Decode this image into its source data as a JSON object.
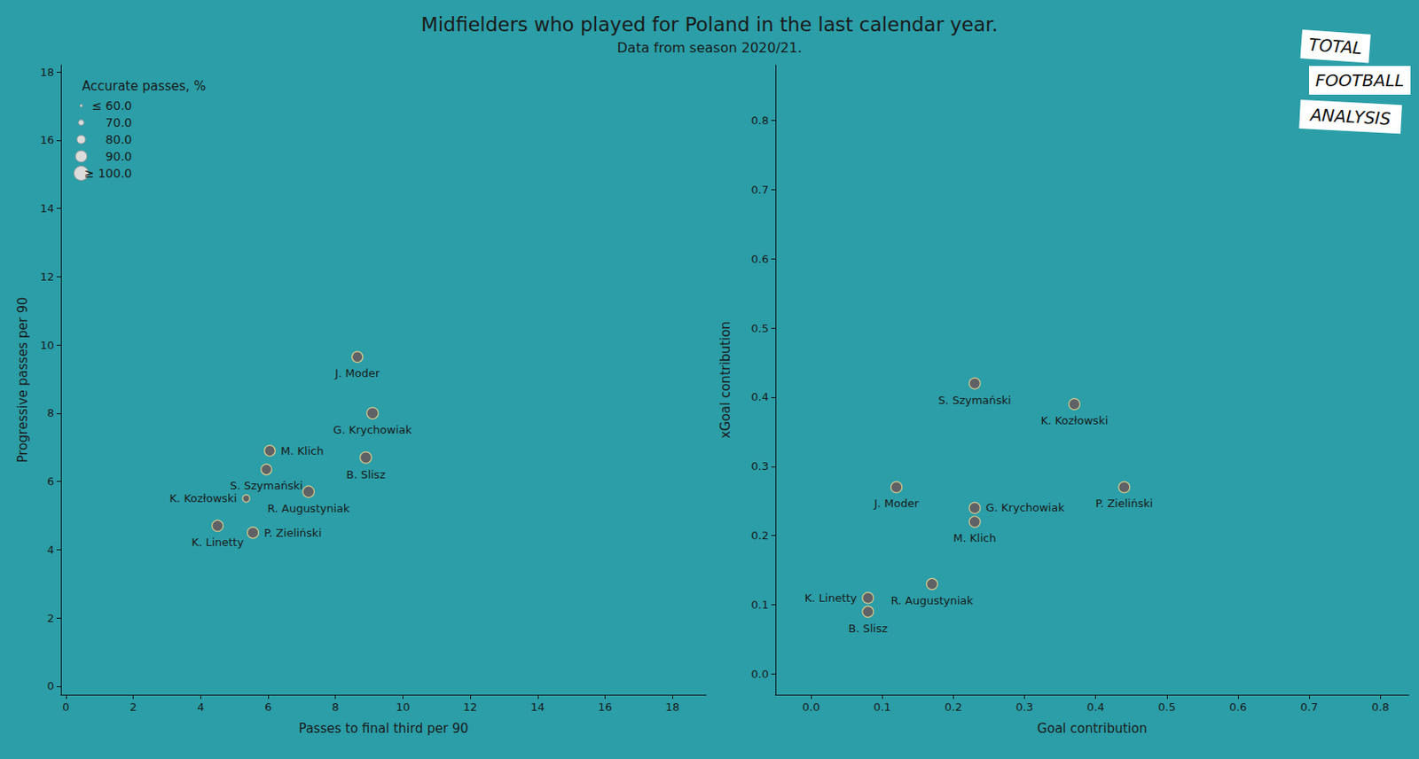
{
  "title": "Midfielders who played for Poland in the last calendar year.",
  "subtitle": "Data from season 2020/21.",
  "logo": [
    "TOTAL",
    "FOOTBALL",
    "ANALYSIS"
  ],
  "chart_data": [
    {
      "type": "scatter",
      "x_label": "Passes to final third per 90",
      "y_label": "Progressive passes per 90",
      "xlim": [
        -0.15,
        19
      ],
      "ylim": [
        -0.25,
        18.2
      ],
      "xticks": [
        0,
        2,
        4,
        6,
        8,
        10,
        12,
        14,
        16,
        18
      ],
      "yticks": [
        0,
        2,
        4,
        6,
        8,
        10,
        12,
        14,
        16,
        18
      ],
      "color": "#5e6266",
      "labels": [
        "J. Moder",
        "G. Krychowiak",
        "M. Klich",
        "B. Slisz",
        "S. Szymański",
        "R. Augustyniak",
        "K. Kozłowski",
        "K. Linetty",
        "P. Zieliński"
      ],
      "x": [
        8.65,
        9.1,
        6.05,
        8.9,
        5.95,
        7.2,
        5.35,
        4.5,
        5.55
      ],
      "y": [
        9.65,
        8.0,
        6.9,
        6.7,
        6.35,
        5.7,
        5.5,
        4.7,
        4.5
      ],
      "accurate_passes": [
        88,
        90,
        88,
        90,
        87,
        90,
        76,
        89,
        89
      ],
      "size_legend": {
        "title": "Accurate passes, %",
        "values": [
          60,
          70,
          80,
          90,
          100
        ],
        "labels": [
          "≤ 60.0",
          "70.0",
          "80.0",
          "90.0",
          "≥ 100.0"
        ]
      }
    },
    {
      "type": "scatter",
      "x_label": "Goal contribution",
      "y_label": "xGoal contribution",
      "xlim": [
        -0.05,
        0.84
      ],
      "ylim": [
        -0.03,
        0.88
      ],
      "xticks": [
        {
          "value": 0,
          "label": "0.0"
        },
        0.1,
        0.2,
        0.3,
        0.4,
        0.5,
        0.6,
        0.7,
        0.8
      ],
      "yticks": [
        {
          "value": 0,
          "label": "0.0"
        },
        0.1,
        0.2,
        0.3,
        0.4,
        0.5,
        0.6,
        0.7,
        0.8
      ],
      "color": "#5e6266",
      "labels": [
        "S. Szymański",
        "K. Kozłowski",
        "J. Moder",
        "P. Zieliński",
        "G. Krychowiak",
        "M. Klich",
        "R. Augustyniak",
        "K. Linetty",
        "B. Slisz"
      ],
      "x": [
        0.23,
        0.37,
        0.12,
        0.44,
        0.23,
        0.23,
        0.17,
        0.08,
        0.08
      ],
      "y": [
        0.42,
        0.39,
        0.27,
        0.27,
        0.24,
        0.22,
        0.13,
        0.11,
        0.09
      ]
    }
  ]
}
